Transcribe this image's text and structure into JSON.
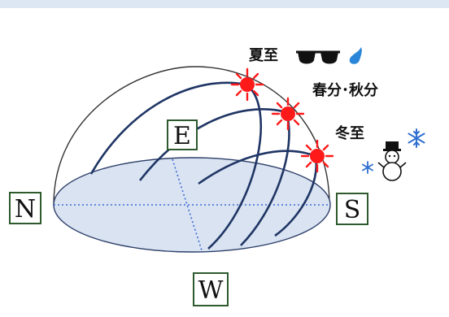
{
  "directions": {
    "north": "N",
    "east": "E",
    "south": "S",
    "west": "W"
  },
  "seasons": {
    "summer_solstice": "夏至",
    "equinox": "春分･秋分",
    "winter_solstice": "冬至"
  },
  "icons": {
    "summer": [
      "sunglasses-icon",
      "sweat-drop-icon"
    ],
    "winter": [
      "snowman-icon",
      "snowflake-icon"
    ],
    "sun": "sun-icon"
  },
  "colors": {
    "dome_outline": "#333333",
    "sun_path": "#1f3564",
    "ground_fill": "#d9e3f1",
    "ground_line": "#2d3f6a",
    "axis_dotted": "#3d6ad6",
    "label_border": "#2e5a2e",
    "sun_red": "#ff1a1a",
    "snowflake": "#2f6fd0",
    "sweat_drop": "#2a86d8"
  }
}
